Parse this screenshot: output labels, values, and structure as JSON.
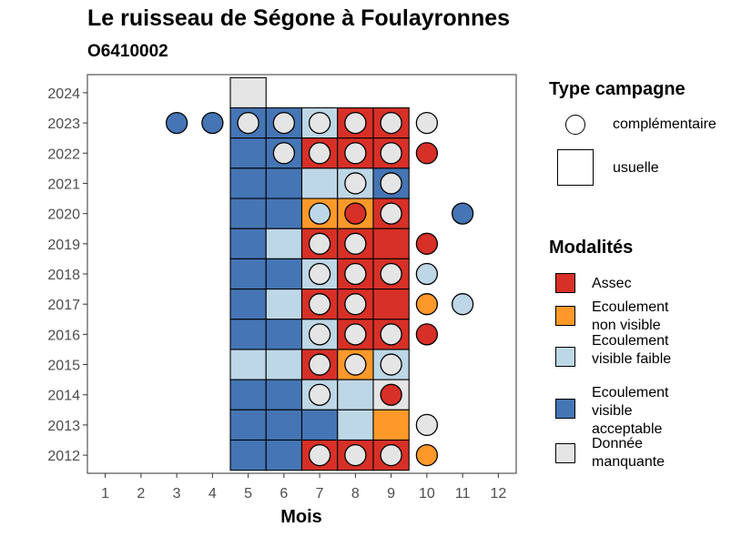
{
  "title": "Le ruisseau de Ségone à Foulayronnes",
  "subtitle": "O6410002",
  "colors": {
    "Assec": "#d73027",
    "Ecoulement non visible": "#fe9929",
    "Ecoulement visible faible": "#bdd7e7",
    "Ecoulement visible acceptable": "#4575b4",
    "Donnée manquante": "#e5e5e5"
  },
  "legend_type": {
    "title": "Type campagne",
    "items": [
      {
        "label": "complémentaire",
        "shape": "circle"
      },
      {
        "label": "usuelle",
        "shape": "square"
      }
    ]
  },
  "legend_modalites": {
    "title": "Modalités",
    "items": [
      {
        "label": "Assec",
        "key": "Assec"
      },
      {
        "label": "Ecoulement non visible",
        "key": "Ecoulement non visible"
      },
      {
        "label": "Ecoulement visible faible",
        "key": "Ecoulement visible faible"
      },
      {
        "label": "Ecoulement visible acceptable",
        "key": "Ecoulement visible acceptable"
      },
      {
        "label": "Donnée manquante",
        "key": "Donnée manquante"
      }
    ]
  },
  "chart_data": {
    "type": "heatmap",
    "xlabel": "Mois",
    "ylabel": "",
    "x_ticks": [
      "1",
      "2",
      "3",
      "4",
      "5",
      "6",
      "7",
      "8",
      "9",
      "10",
      "11",
      "12"
    ],
    "y_ticks": [
      "2012",
      "2013",
      "2014",
      "2015",
      "2016",
      "2017",
      "2018",
      "2019",
      "2020",
      "2021",
      "2022",
      "2023",
      "2024"
    ],
    "xlim": [
      0.5,
      12.5
    ],
    "ylim": [
      2011.4,
      2024.6
    ],
    "grid": false,
    "legend_position": "right",
    "usuelle": [
      {
        "year": 2024,
        "month": 5,
        "modalite": "Donnée manquante"
      },
      {
        "year": 2023,
        "month": 5,
        "modalite": "Ecoulement visible acceptable"
      },
      {
        "year": 2023,
        "month": 6,
        "modalite": "Ecoulement visible acceptable"
      },
      {
        "year": 2023,
        "month": 7,
        "modalite": "Ecoulement visible faible"
      },
      {
        "year": 2023,
        "month": 8,
        "modalite": "Assec"
      },
      {
        "year": 2023,
        "month": 9,
        "modalite": "Assec"
      },
      {
        "year": 2022,
        "month": 5,
        "modalite": "Ecoulement visible acceptable"
      },
      {
        "year": 2022,
        "month": 6,
        "modalite": "Ecoulement visible acceptable"
      },
      {
        "year": 2022,
        "month": 7,
        "modalite": "Assec"
      },
      {
        "year": 2022,
        "month": 8,
        "modalite": "Assec"
      },
      {
        "year": 2022,
        "month": 9,
        "modalite": "Assec"
      },
      {
        "year": 2021,
        "month": 5,
        "modalite": "Ecoulement visible acceptable"
      },
      {
        "year": 2021,
        "month": 6,
        "modalite": "Ecoulement visible acceptable"
      },
      {
        "year": 2021,
        "month": 7,
        "modalite": "Ecoulement visible faible"
      },
      {
        "year": 2021,
        "month": 8,
        "modalite": "Ecoulement visible faible"
      },
      {
        "year": 2021,
        "month": 9,
        "modalite": "Ecoulement visible acceptable"
      },
      {
        "year": 2020,
        "month": 5,
        "modalite": "Ecoulement visible acceptable"
      },
      {
        "year": 2020,
        "month": 6,
        "modalite": "Ecoulement visible acceptable"
      },
      {
        "year": 2020,
        "month": 7,
        "modalite": "Ecoulement non visible"
      },
      {
        "year": 2020,
        "month": 8,
        "modalite": "Ecoulement non visible"
      },
      {
        "year": 2020,
        "month": 9,
        "modalite": "Assec"
      },
      {
        "year": 2019,
        "month": 5,
        "modalite": "Ecoulement visible acceptable"
      },
      {
        "year": 2019,
        "month": 6,
        "modalite": "Ecoulement visible faible"
      },
      {
        "year": 2019,
        "month": 7,
        "modalite": "Assec"
      },
      {
        "year": 2019,
        "month": 8,
        "modalite": "Assec"
      },
      {
        "year": 2019,
        "month": 9,
        "modalite": "Assec"
      },
      {
        "year": 2018,
        "month": 5,
        "modalite": "Ecoulement visible acceptable"
      },
      {
        "year": 2018,
        "month": 6,
        "modalite": "Ecoulement visible acceptable"
      },
      {
        "year": 2018,
        "month": 7,
        "modalite": "Ecoulement visible faible"
      },
      {
        "year": 2018,
        "month": 8,
        "modalite": "Assec"
      },
      {
        "year": 2018,
        "month": 9,
        "modalite": "Assec"
      },
      {
        "year": 2017,
        "month": 5,
        "modalite": "Ecoulement visible acceptable"
      },
      {
        "year": 2017,
        "month": 6,
        "modalite": "Ecoulement visible faible"
      },
      {
        "year": 2017,
        "month": 7,
        "modalite": "Assec"
      },
      {
        "year": 2017,
        "month": 8,
        "modalite": "Assec"
      },
      {
        "year": 2017,
        "month": 9,
        "modalite": "Assec"
      },
      {
        "year": 2016,
        "month": 5,
        "modalite": "Ecoulement visible acceptable"
      },
      {
        "year": 2016,
        "month": 6,
        "modalite": "Ecoulement visible acceptable"
      },
      {
        "year": 2016,
        "month": 7,
        "modalite": "Ecoulement visible faible"
      },
      {
        "year": 2016,
        "month": 8,
        "modalite": "Assec"
      },
      {
        "year": 2016,
        "month": 9,
        "modalite": "Assec"
      },
      {
        "year": 2015,
        "month": 5,
        "modalite": "Ecoulement visible faible"
      },
      {
        "year": 2015,
        "month": 6,
        "modalite": "Ecoulement visible faible"
      },
      {
        "year": 2015,
        "month": 7,
        "modalite": "Assec"
      },
      {
        "year": 2015,
        "month": 8,
        "modalite": "Ecoulement non visible"
      },
      {
        "year": 2015,
        "month": 9,
        "modalite": "Ecoulement visible faible"
      },
      {
        "year": 2014,
        "month": 5,
        "modalite": "Ecoulement visible acceptable"
      },
      {
        "year": 2014,
        "month": 6,
        "modalite": "Ecoulement visible acceptable"
      },
      {
        "year": 2014,
        "month": 7,
        "modalite": "Ecoulement visible faible"
      },
      {
        "year": 2014,
        "month": 8,
        "modalite": "Ecoulement visible faible"
      },
      {
        "year": 2014,
        "month": 9,
        "modalite": "Donnée manquante"
      },
      {
        "year": 2013,
        "month": 5,
        "modalite": "Ecoulement visible acceptable"
      },
      {
        "year": 2013,
        "month": 6,
        "modalite": "Ecoulement visible acceptable"
      },
      {
        "year": 2013,
        "month": 7,
        "modalite": "Ecoulement visible acceptable"
      },
      {
        "year": 2013,
        "month": 8,
        "modalite": "Ecoulement visible faible"
      },
      {
        "year": 2013,
        "month": 9,
        "modalite": "Ecoulement non visible"
      },
      {
        "year": 2012,
        "month": 5,
        "modalite": "Ecoulement visible acceptable"
      },
      {
        "year": 2012,
        "month": 6,
        "modalite": "Ecoulement visible acceptable"
      },
      {
        "year": 2012,
        "month": 7,
        "modalite": "Assec"
      },
      {
        "year": 2012,
        "month": 8,
        "modalite": "Assec"
      },
      {
        "year": 2012,
        "month": 9,
        "modalite": "Assec"
      }
    ],
    "complementaire": [
      {
        "year": 2023,
        "month": 3,
        "modalite": "Ecoulement visible acceptable"
      },
      {
        "year": 2023,
        "month": 4,
        "modalite": "Ecoulement visible acceptable"
      },
      {
        "year": 2023,
        "month": 5,
        "modalite": "Donnée manquante"
      },
      {
        "year": 2023,
        "month": 6,
        "modalite": "Donnée manquante"
      },
      {
        "year": 2023,
        "month": 7,
        "modalite": "Donnée manquante"
      },
      {
        "year": 2023,
        "month": 8,
        "modalite": "Donnée manquante"
      },
      {
        "year": 2023,
        "month": 9,
        "modalite": "Donnée manquante"
      },
      {
        "year": 2023,
        "month": 10,
        "modalite": "Donnée manquante"
      },
      {
        "year": 2022,
        "month": 6,
        "modalite": "Donnée manquante"
      },
      {
        "year": 2022,
        "month": 7,
        "modalite": "Donnée manquante"
      },
      {
        "year": 2022,
        "month": 8,
        "modalite": "Donnée manquante"
      },
      {
        "year": 2022,
        "month": 9,
        "modalite": "Donnée manquante"
      },
      {
        "year": 2022,
        "month": 10,
        "modalite": "Assec"
      },
      {
        "year": 2021,
        "month": 8,
        "modalite": "Donnée manquante"
      },
      {
        "year": 2021,
        "month": 9,
        "modalite": "Donnée manquante"
      },
      {
        "year": 2020,
        "month": 7,
        "modalite": "Ecoulement visible faible"
      },
      {
        "year": 2020,
        "month": 8,
        "modalite": "Assec"
      },
      {
        "year": 2020,
        "month": 9,
        "modalite": "Donnée manquante"
      },
      {
        "year": 2020,
        "month": 11,
        "modalite": "Ecoulement visible acceptable"
      },
      {
        "year": 2019,
        "month": 7,
        "modalite": "Donnée manquante"
      },
      {
        "year": 2019,
        "month": 8,
        "modalite": "Donnée manquante"
      },
      {
        "year": 2019,
        "month": 10,
        "modalite": "Assec"
      },
      {
        "year": 2018,
        "month": 7,
        "modalite": "Donnée manquante"
      },
      {
        "year": 2018,
        "month": 8,
        "modalite": "Donnée manquante"
      },
      {
        "year": 2018,
        "month": 9,
        "modalite": "Donnée manquante"
      },
      {
        "year": 2018,
        "month": 10,
        "modalite": "Ecoulement visible faible"
      },
      {
        "year": 2017,
        "month": 7,
        "modalite": "Donnée manquante"
      },
      {
        "year": 2017,
        "month": 8,
        "modalite": "Donnée manquante"
      },
      {
        "year": 2017,
        "month": 10,
        "modalite": "Ecoulement non visible"
      },
      {
        "year": 2017,
        "month": 11,
        "modalite": "Ecoulement visible faible"
      },
      {
        "year": 2016,
        "month": 7,
        "modalite": "Donnée manquante"
      },
      {
        "year": 2016,
        "month": 8,
        "modalite": "Donnée manquante"
      },
      {
        "year": 2016,
        "month": 9,
        "modalite": "Donnée manquante"
      },
      {
        "year": 2016,
        "month": 10,
        "modalite": "Assec"
      },
      {
        "year": 2015,
        "month": 7,
        "modalite": "Donnée manquante"
      },
      {
        "year": 2015,
        "month": 8,
        "modalite": "Donnée manquante"
      },
      {
        "year": 2015,
        "month": 9,
        "modalite": "Donnée manquante"
      },
      {
        "year": 2014,
        "month": 7,
        "modalite": "Donnée manquante"
      },
      {
        "year": 2014,
        "month": 9,
        "modalite": "Assec"
      },
      {
        "year": 2013,
        "month": 10,
        "modalite": "Donnée manquante"
      },
      {
        "year": 2012,
        "month": 7,
        "modalite": "Donnée manquante"
      },
      {
        "year": 2012,
        "month": 8,
        "modalite": "Donnée manquante"
      },
      {
        "year": 2012,
        "month": 9,
        "modalite": "Donnée manquante"
      },
      {
        "year": 2012,
        "month": 10,
        "modalite": "Ecoulement non visible"
      }
    ]
  }
}
